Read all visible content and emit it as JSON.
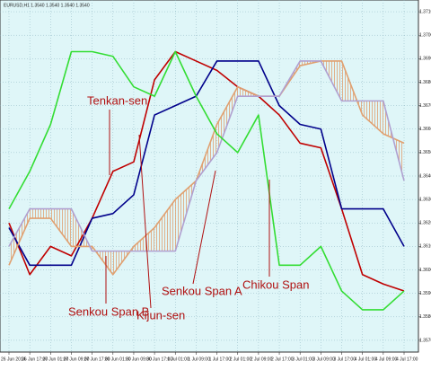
{
  "chart_data": {
    "type": "line",
    "title": "EURUSD,H1 1.3540 1.3540 1.3540 1.3540",
    "categories": [
      "26 Jun 2014",
      "26 Jun 17:00",
      "27 Jun 01:00",
      "27 Jun 09:00",
      "27 Jun 17:00",
      "30 Jun 01:00",
      "30 Jun 09:00",
      "30 Jun 17:00",
      "1 Jul 01:00",
      "1 Jul 09:00",
      "1 Jul 17:00",
      "2 Jul 01:00",
      "2 Jul 09:00",
      "2 Jul 17:00",
      "3 Jul 01:00",
      "3 Jul 09:00",
      "3 Jul 17:00",
      "4 Jul 01:00",
      "4 Jul 09:00",
      "4 Jul 17:00"
    ],
    "series": [
      {
        "name": "Tenkan-sen",
        "color": "#c00000",
        "values": [
          1.362,
          1.3598,
          1.361,
          1.3606,
          1.3622,
          1.3642,
          1.3646,
          1.3681,
          1.3693,
          1.3689,
          1.3685,
          1.3678,
          1.3674,
          1.3666,
          1.3654,
          1.3652,
          1.3626,
          1.3598,
          1.3594,
          1.3591
        ]
      },
      {
        "name": "Kijun-sen",
        "color": "#00008b",
        "values": [
          1.3618,
          1.3602,
          1.3602,
          1.3602,
          1.3622,
          1.3624,
          1.3632,
          1.3666,
          1.367,
          1.3674,
          1.3689,
          1.3689,
          1.3689,
          1.367,
          1.3662,
          1.366,
          1.3626,
          1.3626,
          1.3626,
          1.361
        ]
      },
      {
        "name": "Senkou Span A",
        "color": "#e0a070",
        "values": [
          1.3602,
          1.3622,
          1.3622,
          1.361,
          1.361,
          1.3598,
          1.361,
          1.3618,
          1.363,
          1.3638,
          1.3662,
          1.3678,
          1.3674,
          1.3674,
          1.3687,
          1.3689,
          1.3689,
          1.3666,
          1.3658,
          1.3654
        ]
      },
      {
        "name": "Senkou Span B",
        "color": "#b0a0d0",
        "values": [
          1.361,
          1.3626,
          1.3626,
          1.3626,
          1.3608,
          1.3608,
          1.3608,
          1.3608,
          1.3608,
          1.3638,
          1.365,
          1.3674,
          1.3674,
          1.3674,
          1.3689,
          1.3689,
          1.3672,
          1.3672,
          1.3672,
          1.3638
        ]
      },
      {
        "name": "Chikou Span",
        "color": "#33dd33",
        "values": [
          1.3626,
          1.3642,
          1.3662,
          1.3693,
          1.3693,
          1.3691,
          1.3678,
          1.3674,
          1.3693,
          1.3674,
          1.3658,
          1.365,
          1.3666,
          1.3602,
          1.3602,
          1.361,
          1.3591,
          1.3583,
          1.3583,
          1.3591
        ]
      }
    ],
    "ylim": [
      1.3565,
      1.3715
    ],
    "yticks": [
      {
        "value": 1.357,
        "label": "1.3570"
      },
      {
        "value": 1.358,
        "label": "1.3580"
      },
      {
        "value": 1.359,
        "label": "1.3590"
      },
      {
        "value": 1.36,
        "label": "1.3600"
      },
      {
        "value": 1.361,
        "label": "1.3610"
      },
      {
        "value": 1.362,
        "label": "1.3620"
      },
      {
        "value": 1.363,
        "label": "1.3630"
      },
      {
        "value": 1.364,
        "label": "1.3640"
      },
      {
        "value": 1.365,
        "label": "1.3650"
      },
      {
        "value": 1.366,
        "label": "1.3660"
      },
      {
        "value": 1.367,
        "label": "1.3670"
      },
      {
        "value": 1.368,
        "label": "1.3680"
      },
      {
        "value": 1.369,
        "label": "1.3690"
      },
      {
        "value": 1.37,
        "label": "1.3700"
      },
      {
        "value": 1.371,
        "label": "1.3710"
      }
    ],
    "grid": true,
    "annotations": {
      "tenkan": "Tenkan-sen",
      "span_b": "Senkou Span B",
      "kijun": "Kijun-sen",
      "span_a": "Senkou Span A",
      "chikou": "Chikou Span"
    }
  }
}
